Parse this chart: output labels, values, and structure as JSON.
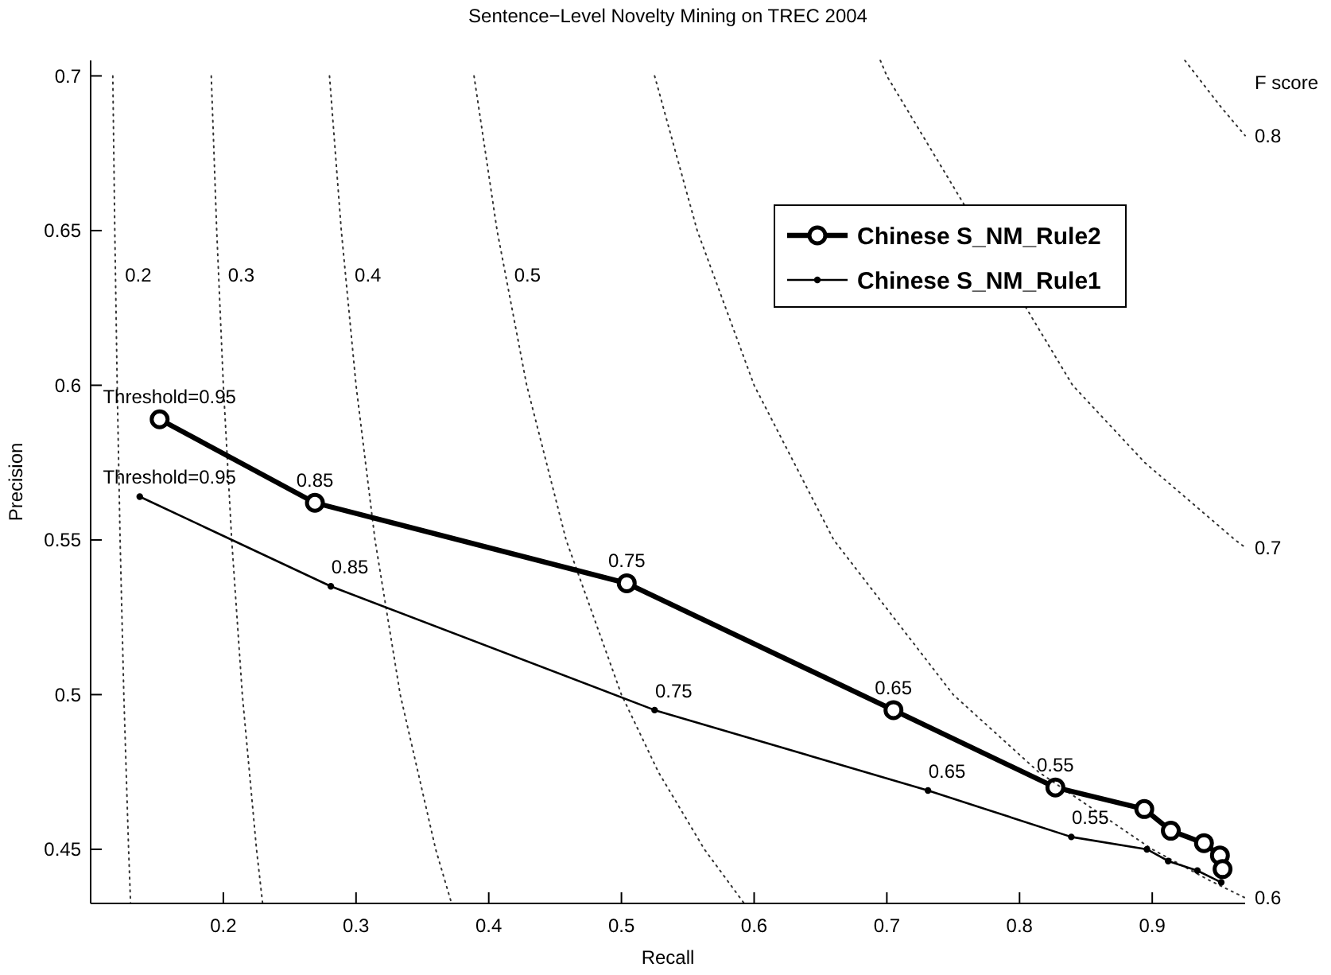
{
  "chart_data": {
    "type": "line",
    "title": "Sentence−Level Novelty Mining on TREC 2004",
    "xlabel": "Recall",
    "ylabel": "Precision",
    "xlim": [
      0.1,
      0.97
    ],
    "ylim": [
      0.4325,
      0.705
    ],
    "xticks": [
      0.2,
      0.3,
      0.4,
      0.5,
      0.6,
      0.7,
      0.8,
      0.9
    ],
    "yticks": [
      0.45,
      0.5,
      0.55,
      0.6,
      0.65,
      0.7
    ],
    "grid": false,
    "legend": "top right",
    "series": [
      {
        "name": "Chinese S_NM_Rule2",
        "color": "#000000",
        "marker": "circle",
        "line_style": "solid",
        "x": [
          0.152,
          0.269,
          0.504,
          0.705,
          0.827,
          0.894,
          0.914,
          0.939,
          0.951,
          0.953
        ],
        "values": [
          0.589,
          0.562,
          0.536,
          0.495,
          0.47,
          0.463,
          0.456,
          0.452,
          0.448,
          0.4436
        ]
      },
      {
        "name": "Chinese S_NM_Rule1",
        "color": "#000000",
        "marker": "circle",
        "line_style": "solid",
        "x": [
          0.137,
          0.281,
          0.525,
          0.731,
          0.839,
          0.896,
          0.912,
          0.934,
          0.952
        ],
        "values": [
          0.564,
          0.535,
          0.495,
          0.469,
          0.454,
          0.45,
          0.4462,
          0.4431,
          0.4393
        ]
      },
      {
        "color": "#000000",
        "marker": "none",
        "line_style": "dotted",
        "x": [
          0.1167,
          0.1182,
          0.12,
          0.1222,
          0.125,
          0.1286,
          0.1301
        ],
        "values": [
          0.7,
          0.65,
          0.6,
          0.55,
          0.5,
          0.45,
          0.4325
        ]
      },
      {
        "color": "#000000",
        "marker": "none",
        "line_style": "dotted",
        "x": [
          0.1909,
          0.195,
          0.2,
          0.2063,
          0.2143,
          0.225,
          0.2296
        ],
        "values": [
          0.7,
          0.65,
          0.6,
          0.55,
          0.5,
          0.45,
          0.4325
        ]
      },
      {
        "color": "#000000",
        "marker": "none",
        "line_style": "dotted",
        "x": [
          0.28,
          0.2889,
          0.3,
          0.3143,
          0.3333,
          0.36,
          0.372
        ],
        "values": [
          0.7,
          0.65,
          0.6,
          0.55,
          0.5,
          0.45,
          0.4325
        ]
      },
      {
        "color": "#000000",
        "marker": "none",
        "line_style": "dotted",
        "x": [
          0.3889,
          0.4063,
          0.4286,
          0.4583,
          0.5,
          0.5278,
          0.5625,
          0.5925
        ],
        "values": [
          0.7,
          0.65,
          0.6,
          0.55,
          0.5,
          0.475,
          0.45,
          0.4325
        ]
      },
      {
        "color": "#000000",
        "marker": "none",
        "line_style": "dotted",
        "x": [
          0.525,
          0.5571,
          0.6,
          0.66,
          0.75,
          0.8143,
          0.9,
          0.9429,
          0.97
        ],
        "values": [
          0.7,
          0.65,
          0.6,
          0.55,
          0.5,
          0.475,
          0.45,
          0.44,
          0.4343
        ]
      },
      {
        "color": "#000000",
        "marker": "none",
        "line_style": "dotted",
        "x": [
          0.6951,
          0.7,
          0.7583,
          0.84,
          0.8944,
          0.9625,
          0.97
        ],
        "values": [
          0.705,
          0.7,
          null,
          0.6,
          0.575,
          0.55,
          0.5476
        ]
      },
      {
        "color": "#000000",
        "marker": "none",
        "line_style": "dotted",
        "x": [
          0.9246,
          0.9517,
          0.97
        ],
        "values": [
          0.705,
          0.69,
          0.6807
        ]
      }
    ],
    "annotations": [
      {
        "text": "Threshold=0.95",
        "x": 0.152,
        "y": 0.589
      },
      {
        "text": "0.85",
        "x": 0.269,
        "y": 0.562
      },
      {
        "text": "0.75",
        "x": 0.504,
        "y": 0.536
      },
      {
        "text": "0.65",
        "x": 0.705,
        "y": 0.495
      },
      {
        "text": "0.55",
        "x": 0.827,
        "y": 0.47
      },
      {
        "text": "Threshold=0.95",
        "x": 0.137,
        "y": 0.564
      },
      {
        "text": "0.85",
        "x": 0.281,
        "y": 0.535
      },
      {
        "text": "0.75",
        "x": 0.525,
        "y": 0.495
      },
      {
        "text": "0.65",
        "x": 0.731,
        "y": 0.469
      },
      {
        "text": "0.55",
        "x": 0.839,
        "y": 0.454
      },
      {
        "text": "0.2",
        "x": 0.1187,
        "y": 0.6357
      },
      {
        "text": "0.3",
        "x": 0.1963,
        "y": 0.6357
      },
      {
        "text": "0.4",
        "x": 0.2918,
        "y": 0.6357
      },
      {
        "text": "0.5",
        "x": 0.412,
        "y": 0.6357
      },
      "F score",
      {
        "text": "0.8",
        "x": 0.97,
        "y": 0.6807
      },
      {
        "text": "0.7",
        "x": 0.97,
        "y": 0.5476
      },
      {
        "text": "0.6",
        "x": 0.97,
        "y": 0.4343
      }
    ]
  }
}
